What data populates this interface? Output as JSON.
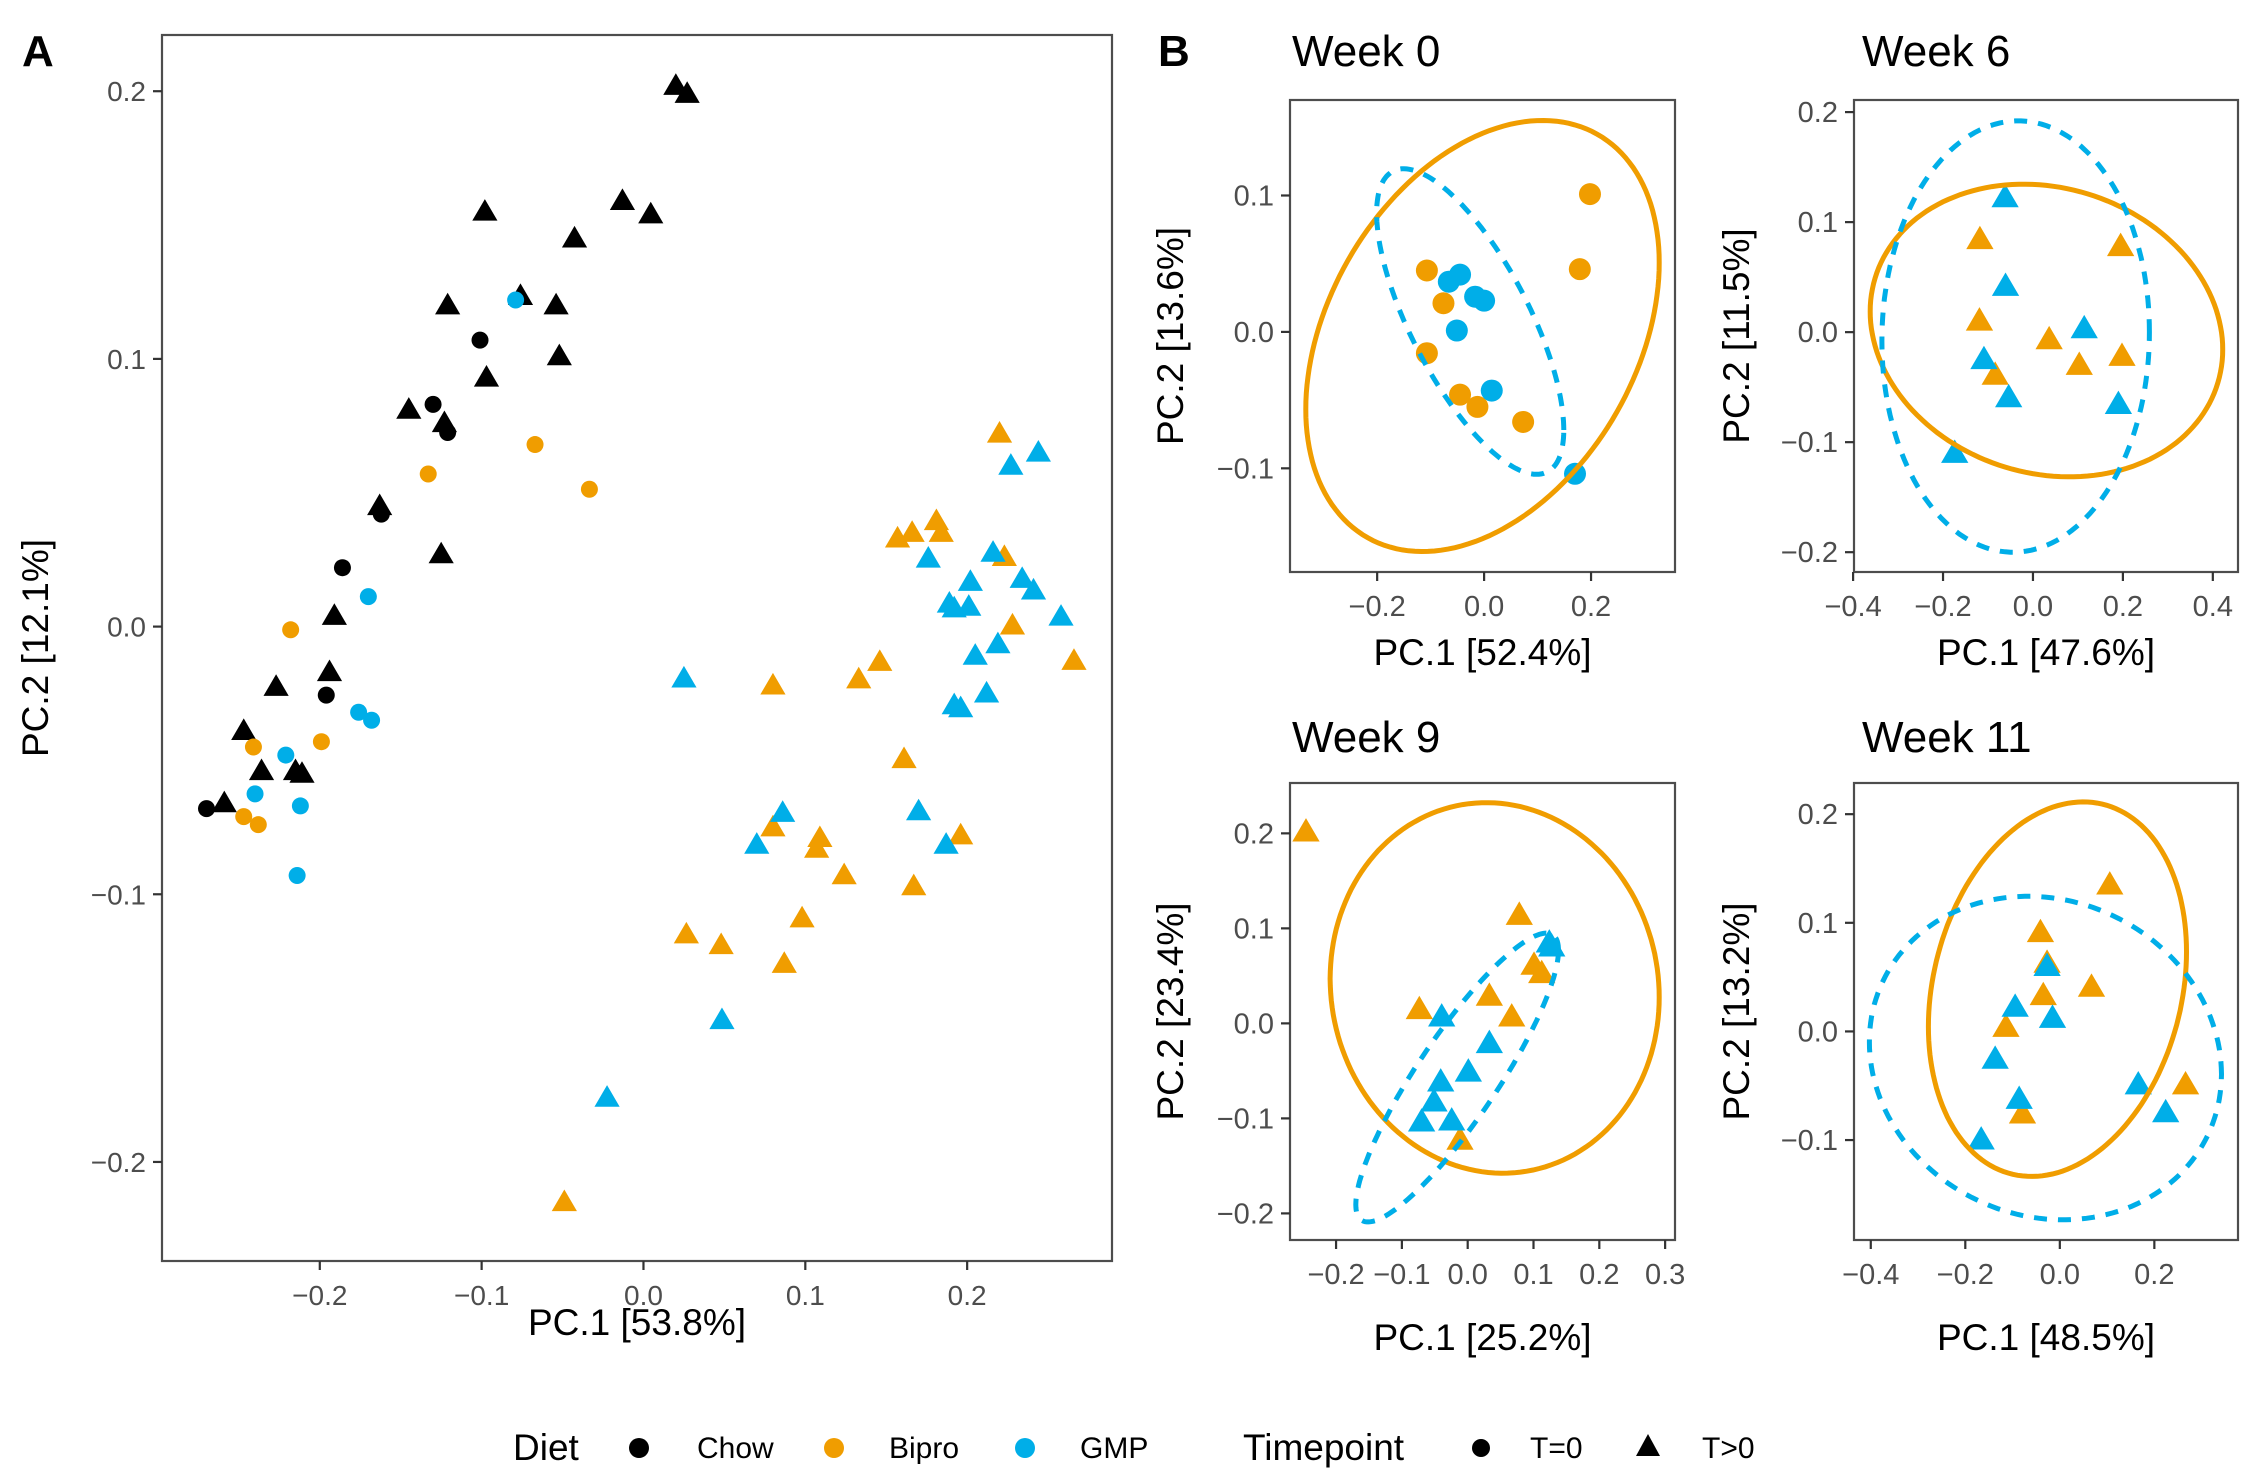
{
  "colors": {
    "Chow": "#000000",
    "Bipro": "#F09D00",
    "GMP": "#00AEE8"
  },
  "panel_labels": {
    "a": "A",
    "b": "B"
  },
  "legend": {
    "diet_title": "Diet",
    "diet_items": [
      {
        "label": "Chow",
        "color_key": "Chow",
        "shape": "circle"
      },
      {
        "label": "Bipro",
        "color_key": "Bipro",
        "shape": "circle"
      },
      {
        "label": "GMP",
        "color_key": "GMP",
        "shape": "circle"
      }
    ],
    "timepoint_title": "Timepoint",
    "timepoint_items": [
      {
        "label": "T=0",
        "shape": "circle"
      },
      {
        "label": "T>0",
        "shape": "triangle"
      }
    ]
  },
  "chart_data": [
    {
      "id": "A",
      "type": "scatter",
      "title": "",
      "panel_label": "A",
      "xlabel": "PC.1 [53.8%]",
      "ylabel": "PC.2 [12.1%]",
      "xlim": [
        -0.2975,
        0.2895
      ],
      "ylim": [
        -0.237,
        0.221
      ],
      "xticks": [
        -0.2,
        -0.1,
        0.0,
        0.1,
        0.2
      ],
      "xtick_labels": [
        "−0.2",
        "−0.1",
        "0.0",
        "0.1",
        "0.2"
      ],
      "yticks": [
        -0.2,
        -0.1,
        0.0,
        0.1,
        0.2
      ],
      "ytick_labels": [
        "−0.2",
        "−0.1",
        "0.0",
        "0.1",
        "0.2"
      ],
      "grid": false,
      "series": [
        {
          "name": "Chow T=0",
          "diet": "Chow",
          "timepoint": "T=0",
          "shape": "circle",
          "points": [
            [
              -0.101,
              0.107
            ],
            [
              -0.13,
              0.083
            ],
            [
              -0.121,
              0.0725
            ],
            [
              -0.162,
              0.042
            ],
            [
              -0.186,
              0.022
            ],
            [
              -0.196,
              -0.0256
            ],
            [
              -0.27,
              -0.068
            ]
          ]
        },
        {
          "name": "Chow T>0",
          "diet": "Chow",
          "timepoint": "T>0",
          "shape": "triangle",
          "points": [
            [
              0.02,
              0.202
            ],
            [
              0.027,
              0.199
            ],
            [
              -0.013,
              0.159
            ],
            [
              0.0045,
              0.154
            ],
            [
              -0.0426,
              0.145
            ],
            [
              -0.098,
              0.155
            ],
            [
              -0.076,
              0.1235
            ],
            [
              -0.054,
              0.12
            ],
            [
              -0.121,
              0.12
            ],
            [
              -0.052,
              0.101
            ],
            [
              -0.097,
              0.093
            ],
            [
              -0.145,
              0.081
            ],
            [
              -0.123,
              0.076
            ],
            [
              -0.163,
              0.045
            ],
            [
              -0.125,
              0.027
            ],
            [
              -0.191,
              0.004
            ],
            [
              -0.227,
              -0.0225
            ],
            [
              -0.194,
              -0.017
            ],
            [
              -0.247,
              -0.039
            ],
            [
              -0.236,
              -0.054
            ],
            [
              -0.215,
              -0.054
            ],
            [
              -0.211,
              -0.055
            ],
            [
              -0.259,
              -0.066
            ]
          ]
        },
        {
          "name": "Bipro T=0",
          "diet": "Bipro",
          "timepoint": "T=0",
          "shape": "circle",
          "points": [
            [
              -0.067,
              0.068
            ],
            [
              -0.133,
              0.057
            ],
            [
              -0.0334,
              0.0513
            ],
            [
              -0.218,
              -0.0012
            ],
            [
              -0.199,
              -0.043
            ],
            [
              -0.241,
              -0.045
            ],
            [
              -0.247,
              -0.071
            ],
            [
              -0.238,
              -0.074
            ]
          ]
        },
        {
          "name": "GMP T=0",
          "diet": "GMP",
          "timepoint": "T=0",
          "shape": "circle",
          "points": [
            [
              -0.079,
              0.122
            ],
            [
              -0.17,
              0.0112
            ],
            [
              -0.176,
              -0.032
            ],
            [
              -0.168,
              -0.035
            ],
            [
              -0.221,
              -0.048
            ],
            [
              -0.24,
              -0.0625
            ],
            [
              -0.212,
              -0.067
            ],
            [
              -0.214,
              -0.093
            ]
          ]
        },
        {
          "name": "Bipro T>0",
          "diet": "Bipro",
          "timepoint": "T>0",
          "shape": "triangle",
          "points": [
            [
              0.22,
              0.0721
            ],
            [
              0.157,
              0.0329
            ],
            [
              0.166,
              0.035
            ],
            [
              0.181,
              0.0394
            ],
            [
              0.184,
              0.035
            ],
            [
              0.223,
              0.026
            ],
            [
              0.228,
              0.0004
            ],
            [
              0.266,
              -0.0128
            ],
            [
              0.146,
              -0.0132
            ],
            [
              0.133,
              -0.0197
            ],
            [
              0.08,
              -0.022
            ],
            [
              0.161,
              -0.0495
            ],
            [
              0.08,
              -0.075
            ],
            [
              0.109,
              -0.079
            ],
            [
              0.107,
              -0.083
            ],
            [
              0.196,
              -0.078
            ],
            [
              0.124,
              -0.0929
            ],
            [
              0.167,
              -0.097
            ],
            [
              0.098,
              -0.109
            ],
            [
              0.0265,
              -0.115
            ],
            [
              0.048,
              -0.119
            ],
            [
              0.087,
              -0.126
            ],
            [
              -0.0489,
              -0.215
            ]
          ]
        },
        {
          "name": "GMP T>0",
          "diet": "GMP",
          "timepoint": "T>0",
          "shape": "triangle",
          "points": [
            [
              0.244,
              0.065
            ],
            [
              0.227,
              0.0601
            ],
            [
              0.216,
              0.0276
            ],
            [
              0.176,
              0.0254
            ],
            [
              0.202,
              0.0167
            ],
            [
              0.234,
              0.0178
            ],
            [
              0.241,
              0.0135
            ],
            [
              0.189,
              0.0086
            ],
            [
              0.201,
              0.0074
            ],
            [
              0.258,
              0.0037
            ],
            [
              0.192,
              0.0068
            ],
            [
              0.219,
              -0.0066
            ],
            [
              0.205,
              -0.0109
            ],
            [
              0.192,
              -0.0294
            ],
            [
              0.196,
              -0.0305
            ],
            [
              0.212,
              -0.025
            ],
            [
              0.025,
              -0.0194
            ],
            [
              0.086,
              -0.0696
            ],
            [
              0.07,
              -0.0815
            ],
            [
              0.17,
              -0.069
            ],
            [
              0.187,
              -0.0815
            ],
            [
              0.0485,
              -0.147
            ],
            [
              -0.0225,
              -0.176
            ]
          ]
        }
      ],
      "ellipses": []
    },
    {
      "id": "W0",
      "type": "scatter",
      "title": "Week 0",
      "panel_label": "B",
      "xlabel": "PC.1 [52.4%]",
      "ylabel": "PC.2 [13.6%]",
      "xlim": [
        -0.363,
        0.357
      ],
      "ylim": [
        -0.176,
        0.17
      ],
      "xticks": [
        -0.2,
        0.0,
        0.2
      ],
      "xtick_labels": [
        "−0.2",
        "0.0",
        "0.2"
      ],
      "yticks": [
        -0.1,
        0.0,
        0.1
      ],
      "ytick_labels": [
        "−0.1",
        "0.0",
        "0.1"
      ],
      "grid": false,
      "series": [
        {
          "name": "Bipro T=0",
          "diet": "Bipro",
          "timepoint": "T=0",
          "shape": "circle",
          "points": [
            [
              0.198,
              0.101
            ],
            [
              0.179,
              0.046
            ],
            [
              -0.107,
              0.045
            ],
            [
              -0.076,
              0.021
            ],
            [
              -0.107,
              -0.0156
            ],
            [
              -0.045,
              -0.046
            ],
            [
              -0.0125,
              -0.055
            ],
            [
              0.073,
              -0.066
            ]
          ]
        },
        {
          "name": "GMP T=0",
          "diet": "GMP",
          "timepoint": "T=0",
          "shape": "circle",
          "points": [
            [
              -0.045,
              0.042
            ],
            [
              -0.066,
              0.0368
            ],
            [
              -0.0168,
              0.0258
            ],
            [
              0.0,
              0.0229
            ],
            [
              -0.051,
              0.001
            ],
            [
              0.0143,
              -0.043
            ],
            [
              0.17,
              -0.104
            ]
          ]
        }
      ],
      "ellipses": [
        {
          "diet": "Bipro",
          "style": "solid",
          "center": [
            -0.003,
            -0.003
          ],
          "half_x": 0.3305,
          "half_y": 0.158,
          "rho": 0.34
        },
        {
          "diet": "GMP",
          "style": "dashed",
          "center": [
            -0.026,
            0.0076
          ],
          "half_x": 0.175,
          "half_y": 0.112,
          "rho": -0.71
        }
      ]
    },
    {
      "id": "W6",
      "type": "scatter",
      "title": "Week 6",
      "panel_label": "",
      "xlabel": "PC.1 [47.6%]",
      "ylabel": "PC.2 [11.5%]",
      "xlim": [
        -0.398,
        0.456
      ],
      "ylim": [
        -0.218,
        0.211
      ],
      "xticks": [
        -0.4,
        -0.2,
        0.0,
        0.2,
        0.4
      ],
      "xtick_labels": [
        "−0.4",
        "−0.2",
        "0.0",
        "0.2",
        "0.4"
      ],
      "yticks": [
        -0.2,
        -0.1,
        0.0,
        0.1,
        0.2
      ],
      "ytick_labels": [
        "−0.2",
        "−0.1",
        "0.0",
        "0.1",
        "0.2"
      ],
      "grid": false,
      "series": [
        {
          "name": "Bipro T>0",
          "diet": "Bipro",
          "timepoint": "T>0",
          "shape": "triangle",
          "points": [
            [
              -0.118,
              0.0843
            ],
            [
              0.195,
              0.078
            ],
            [
              -0.119,
              0.0103
            ],
            [
              0.036,
              -0.0067
            ],
            [
              0.198,
              -0.0218
            ],
            [
              0.103,
              -0.03
            ],
            [
              -0.084,
              -0.039
            ]
          ]
        },
        {
          "name": "GMP T>0",
          "diet": "GMP",
          "timepoint": "T>0",
          "shape": "triangle",
          "points": [
            [
              -0.062,
              0.1224
            ],
            [
              -0.061,
              0.0418
            ],
            [
              0.114,
              0.0033
            ],
            [
              -0.109,
              -0.0248
            ],
            [
              -0.054,
              -0.0594
            ],
            [
              0.19,
              -0.0655
            ],
            [
              -0.174,
              -0.11
            ]
          ]
        }
      ],
      "ellipses": [
        {
          "diet": "Bipro",
          "style": "solid",
          "center": [
            0.03,
            0.0015
          ],
          "half_x": 0.392,
          "half_y": 0.133,
          "rho": -0.13
        },
        {
          "diet": "GMP",
          "style": "dashed",
          "center": [
            -0.0385,
            -0.004
          ],
          "half_x": 0.2975,
          "half_y": 0.196,
          "rho": 0.02
        }
      ]
    },
    {
      "id": "W9",
      "type": "scatter",
      "title": "Week 9",
      "panel_label": "",
      "xlabel": "PC.1 [25.2%]",
      "ylabel": "PC.2 [23.4%]",
      "xlim": [
        -0.27,
        0.315
      ],
      "ylim": [
        -0.228,
        0.253
      ],
      "xticks": [
        -0.2,
        -0.1,
        0.0,
        0.1,
        0.2,
        0.3
      ],
      "xtick_labels": [
        "−0.2",
        "−0.1",
        "0.0",
        "0.1",
        "0.2",
        "0.3"
      ],
      "yticks": [
        -0.2,
        -0.1,
        0.0,
        0.1,
        0.2
      ],
      "ytick_labels": [
        "−0.2",
        "−0.1",
        "0.0",
        "0.1",
        "0.2"
      ],
      "grid": false,
      "series": [
        {
          "name": "Bipro T>0",
          "diet": "Bipro",
          "timepoint": "T>0",
          "shape": "triangle",
          "points": [
            [
              -0.2457,
              0.2017
            ],
            [
              0.0784,
              0.114
            ],
            [
              0.1008,
              0.0614
            ],
            [
              0.1125,
              0.0526
            ],
            [
              0.0329,
              0.0288
            ],
            [
              -0.0735,
              0.0147
            ],
            [
              0.0669,
              0.007
            ],
            [
              -0.0117,
              -0.1228
            ]
          ]
        },
        {
          "name": "GMP T>0",
          "diet": "GMP",
          "timepoint": "T>0",
          "shape": "triangle",
          "points": [
            [
              0.124,
              0.0849
            ],
            [
              0.1277,
              0.0806
            ],
            [
              -0.0395,
              0.007
            ],
            [
              0.0329,
              -0.021
            ],
            [
              0.001,
              -0.051
            ],
            [
              -0.041,
              -0.0615
            ],
            [
              -0.0512,
              -0.0825
            ],
            [
              -0.07,
              -0.1036
            ],
            [
              -0.0243,
              -0.1025
            ]
          ]
        }
      ],
      "ellipses": [
        {
          "diet": "Bipro",
          "style": "solid",
          "center": [
            0.041,
            0.0373
          ],
          "half_x": 0.25,
          "half_y": 0.195,
          "rho": -0.05
        },
        {
          "diet": "GMP",
          "style": "dashed",
          "center": [
            -0.016,
            -0.057
          ],
          "half_x": 0.154,
          "half_y": 0.152,
          "rho": 0.88
        }
      ]
    },
    {
      "id": "W11",
      "type": "scatter",
      "title": "Week 11",
      "panel_label": "",
      "xlabel": "PC.1 [48.5%]",
      "ylabel": "PC.2 [13.2%]",
      "xlim": [
        -0.4355,
        0.377
      ],
      "ylim": [
        -0.192,
        0.2287
      ],
      "xticks": [
        -0.4,
        -0.2,
        0.0,
        0.2
      ],
      "xtick_labels": [
        "−0.4",
        "−0.2",
        "0.0",
        "0.2"
      ],
      "yticks": [
        -0.1,
        0.0,
        0.1,
        0.2
      ],
      "ytick_labels": [
        "−0.1",
        "0.0",
        "0.1",
        "0.2"
      ],
      "grid": false,
      "series": [
        {
          "name": "Bipro T>0",
          "diet": "Bipro",
          "timepoint": "T>0",
          "shape": "triangle",
          "points": [
            [
              0.1057,
              0.135
            ],
            [
              -0.041,
              0.0912
            ],
            [
              -0.027,
              0.063
            ],
            [
              -0.035,
              0.0332
            ],
            [
              0.067,
              0.0409
            ],
            [
              -0.114,
              0.004
            ],
            [
              0.266,
              -0.049
            ],
            [
              -0.079,
              -0.0758
            ]
          ]
        },
        {
          "name": "GMP T>0",
          "diet": "GMP",
          "timepoint": "T>0",
          "shape": "triangle",
          "points": [
            [
              -0.027,
              0.06
            ],
            [
              -0.0945,
              0.0225
            ],
            [
              -0.0155,
              0.0123
            ],
            [
              -0.1368,
              -0.0254
            ],
            [
              0.166,
              -0.049
            ],
            [
              -0.086,
              -0.0623
            ],
            [
              0.224,
              -0.0746
            ],
            [
              -0.1664,
              -0.0997
            ]
          ]
        }
      ],
      "ellipses": [
        {
          "diet": "Bipro",
          "style": "solid",
          "center": [
            -0.005,
            0.0389
          ],
          "half_x": 0.273,
          "half_y": 0.1724,
          "rho": 0.2
        },
        {
          "diet": "GMP",
          "style": "dashed",
          "center": [
            -0.0305,
            -0.0245
          ],
          "half_x": 0.3725,
          "half_y": 0.1489,
          "rho": -0.1
        }
      ]
    }
  ]
}
